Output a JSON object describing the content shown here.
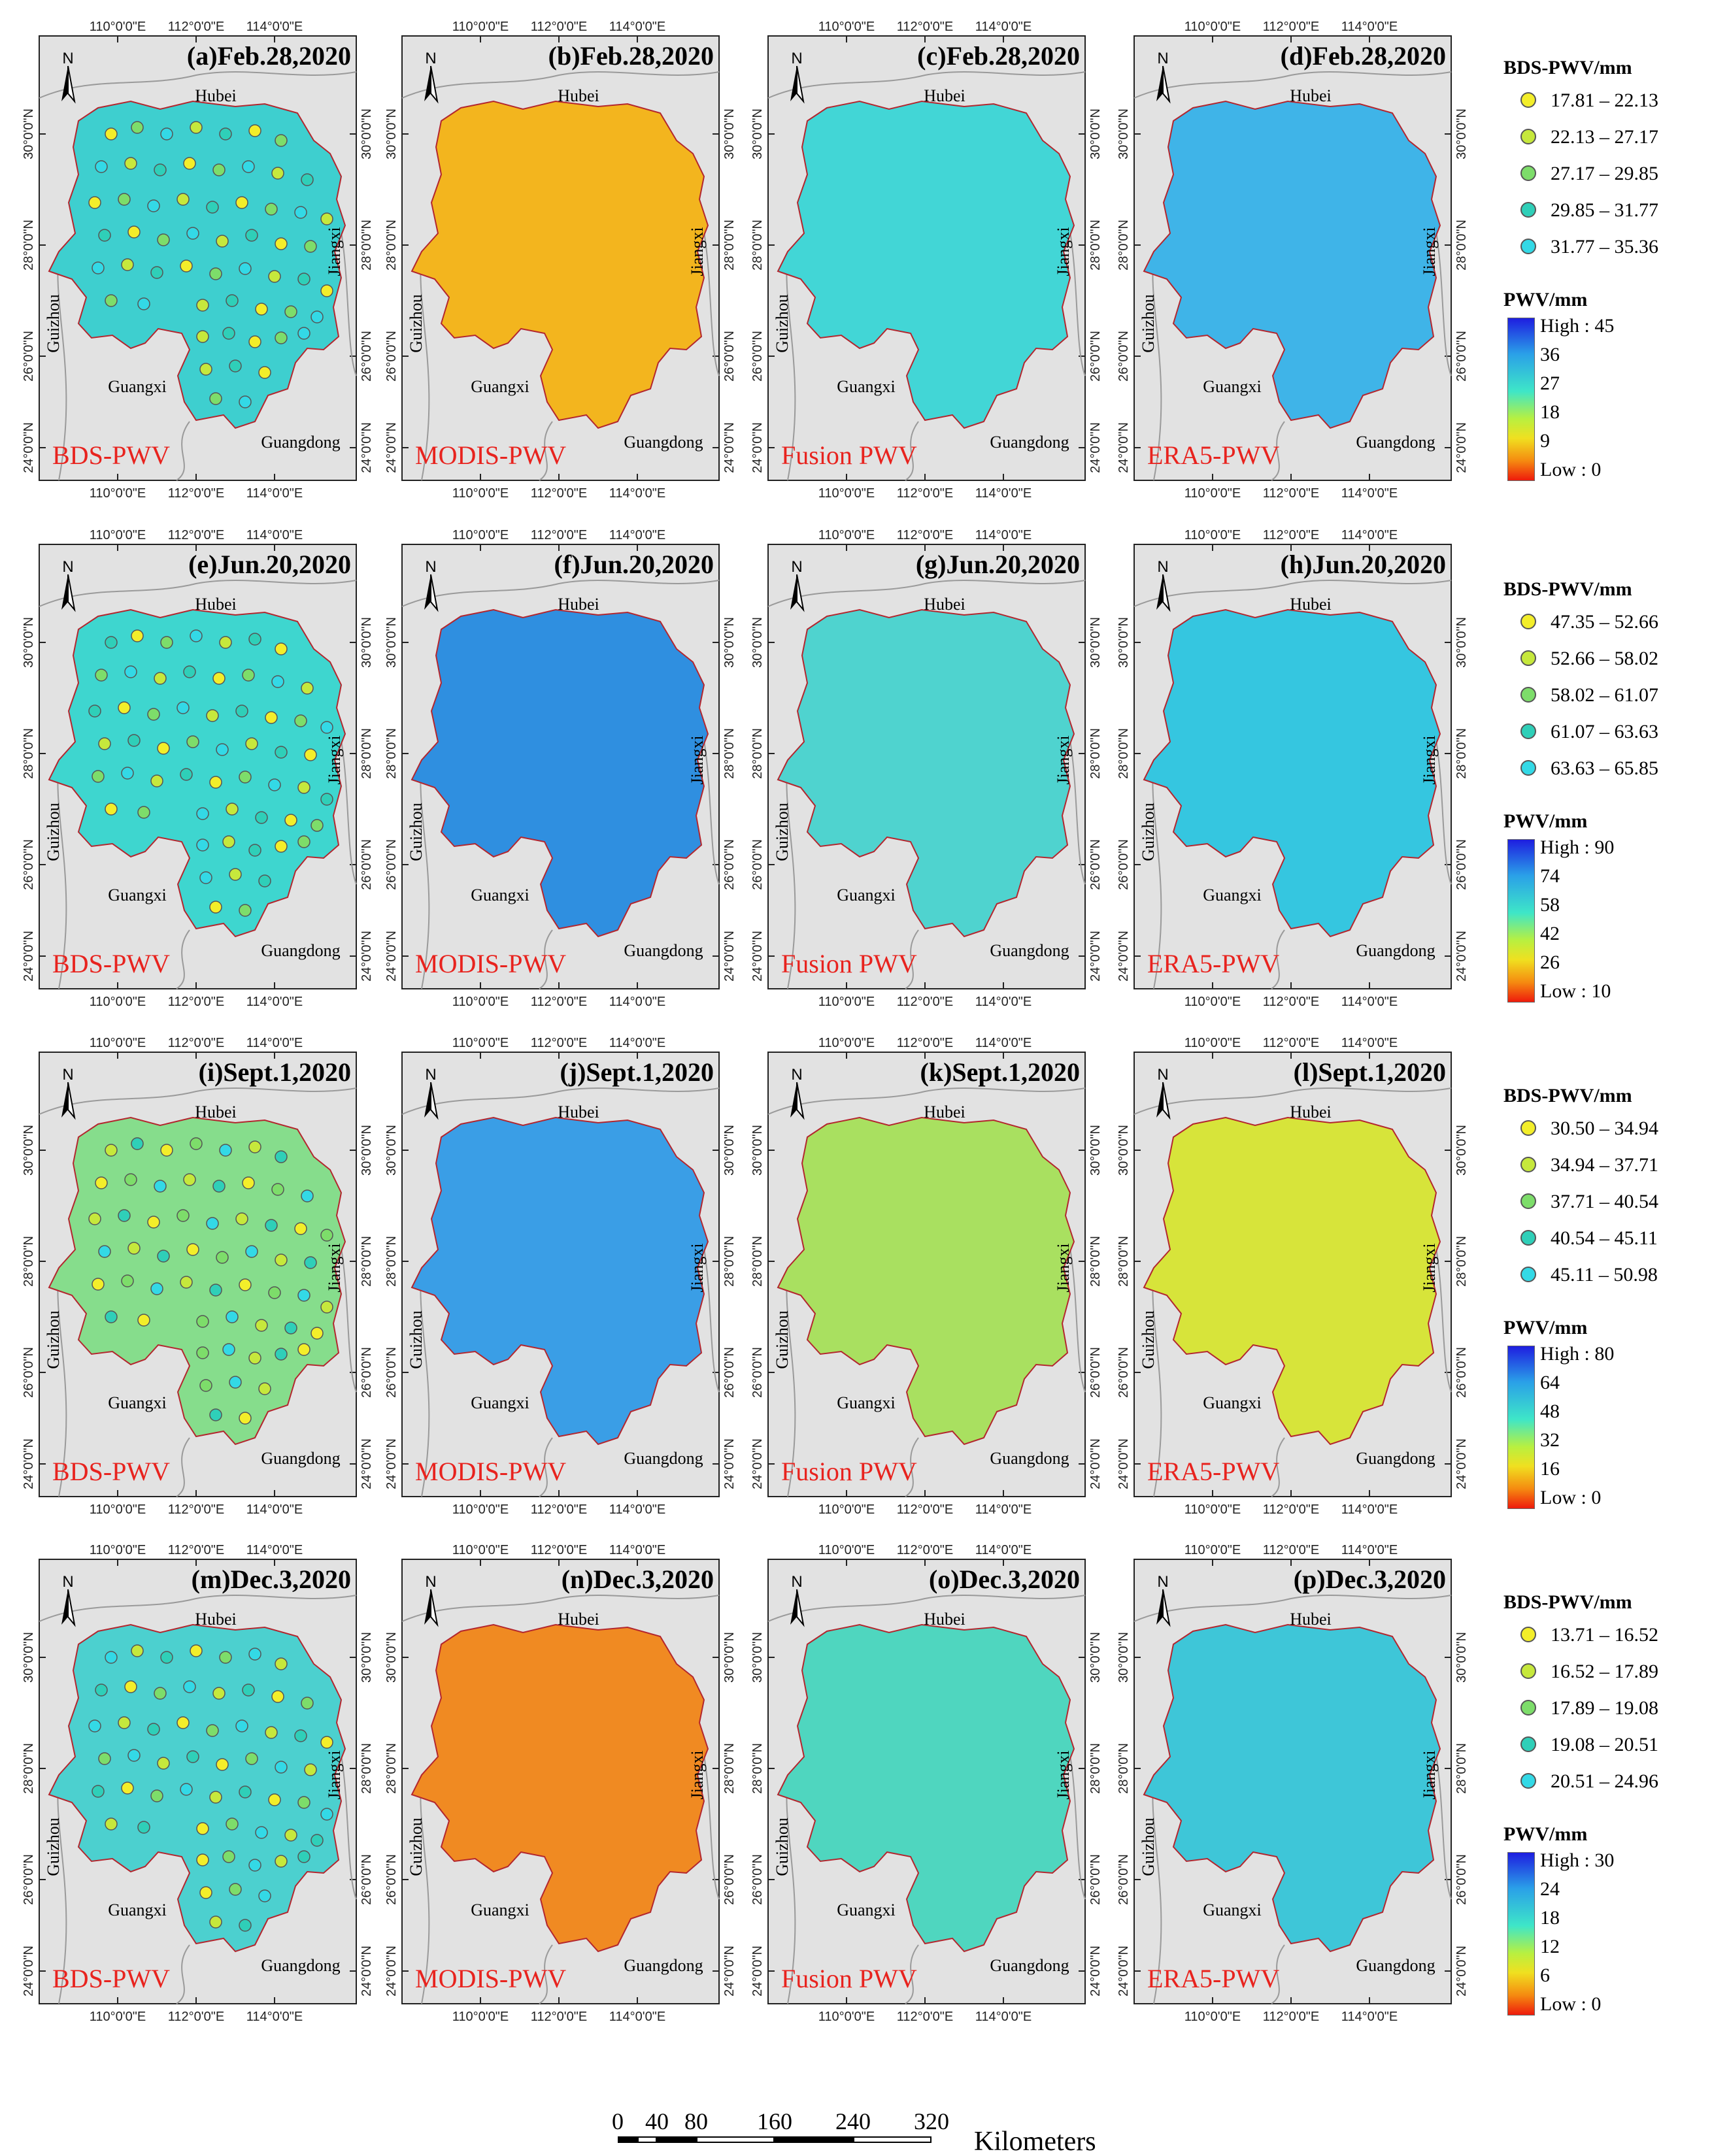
{
  "panels": [
    {
      "label": "(a)Feb.28,2020",
      "source": "BDS-PWV"
    },
    {
      "label": "(b)Feb.28,2020",
      "source": "MODIS-PWV"
    },
    {
      "label": "(c)Feb.28,2020",
      "source": "Fusion PWV"
    },
    {
      "label": "(d)Feb.28,2020",
      "source": "ERA5-PWV"
    },
    {
      "label": "(e)Jun.20,2020",
      "source": "BDS-PWV"
    },
    {
      "label": "(f)Jun.20,2020",
      "source": "MODIS-PWV"
    },
    {
      "label": "(g)Jun.20,2020",
      "source": "Fusion PWV"
    },
    {
      "label": "(h)Jun.20,2020",
      "source": "ERA5-PWV"
    },
    {
      "label": "(i)Sept.1,2020",
      "source": "BDS-PWV"
    },
    {
      "label": "(j)Sept.1,2020",
      "source": "MODIS-PWV"
    },
    {
      "label": "(k)Sept.1,2020",
      "source": "Fusion PWV"
    },
    {
      "label": "(l)Sept.1,2020",
      "source": "ERA5-PWV"
    },
    {
      "label": "(m)Dec.3,2020",
      "source": "BDS-PWV"
    },
    {
      "label": "(n)Dec.3,2020",
      "source": "MODIS-PWV"
    },
    {
      "label": "(o)Dec.3,2020",
      "source": "Fusion PWV"
    },
    {
      "label": "(p)Dec.3,2020",
      "source": "ERA5-PWV"
    }
  ],
  "row_fills": [
    {
      "BDS-PWV": "#3ecfcf",
      "MODIS-PWV": "#f3b51e",
      "Fusion PWV": "#42d6d6",
      "ERA5-PWV": "#3fb4e8"
    },
    {
      "BDS-PWV": "#3ed6cf",
      "MODIS-PWV": "#2f8fe0",
      "Fusion PWV": "#4fd3cf",
      "ERA5-PWV": "#35c6e0"
    },
    {
      "BDS-PWV": "#86dd8c",
      "MODIS-PWV": "#3a9ee6",
      "Fusion PWV": "#a9e060",
      "ERA5-PWV": "#d7e43a"
    },
    {
      "BDS-PWV": "#4cd0cf",
      "MODIS-PWV": "#f08a22",
      "Fusion PWV": "#4fd6bf",
      "ERA5-PWV": "#3ec6d8"
    }
  ],
  "labels": {
    "north": "N",
    "hubei": "Hubei",
    "guizhou": "Guizhou",
    "guangxi": "Guangxi",
    "guangdong": "Guangdong",
    "jiangxi": "Jiangxi"
  },
  "axes": {
    "lon": [
      "110°0'0\"E",
      "112°0'0\"E",
      "114°0'0\"E"
    ],
    "lat": [
      "30°0'0\"N",
      "28°0'0\"N",
      "26°0'0\"N",
      "24°0'0\"N"
    ]
  },
  "legends": [
    {
      "bds_title": "BDS-PWV/mm",
      "classes": [
        "17.81 – 22.13",
        "22.13 – 27.17",
        "27.17 – 29.85",
        "29.85 – 31.77",
        "31.77 – 35.36"
      ],
      "pwv_title": "PWV/mm",
      "ramp": [
        "High : 45",
        "36",
        "27",
        "18",
        "9",
        "Low : 0"
      ]
    },
    {
      "bds_title": "BDS-PWV/mm",
      "classes": [
        "47.35 – 52.66",
        "52.66 – 58.02",
        "58.02 – 61.07",
        "61.07 – 63.63",
        "63.63 – 65.85"
      ],
      "pwv_title": "PWV/mm",
      "ramp": [
        "High : 90",
        "74",
        "58",
        "42",
        "26",
        "Low : 10"
      ]
    },
    {
      "bds_title": "BDS-PWV/mm",
      "classes": [
        "30.50 – 34.94",
        "34.94 – 37.71",
        "37.71 – 40.54",
        "40.54 – 45.11",
        "45.11 – 50.98"
      ],
      "pwv_title": "PWV/mm",
      "ramp": [
        "High : 80",
        "64",
        "48",
        "32",
        "16",
        "Low : 0"
      ]
    },
    {
      "bds_title": "BDS-PWV/mm",
      "classes": [
        "13.71 – 16.52",
        "16.52 – 17.89",
        "17.89 – 19.08",
        "19.08 – 20.51",
        "20.51 – 24.96"
      ],
      "pwv_title": "PWV/mm",
      "ramp": [
        "High : 30",
        "24",
        "18",
        "12",
        "6",
        "Low : 0"
      ]
    }
  ],
  "class_colors": [
    "#f3ee2a",
    "#c6e83c",
    "#7ddd6a",
    "#2fcfb8",
    "#33d9e6"
  ],
  "scalebar": {
    "ticks": [
      "0",
      "40",
      "80",
      "160",
      "240",
      "320"
    ],
    "unit": "Kilometers"
  }
}
